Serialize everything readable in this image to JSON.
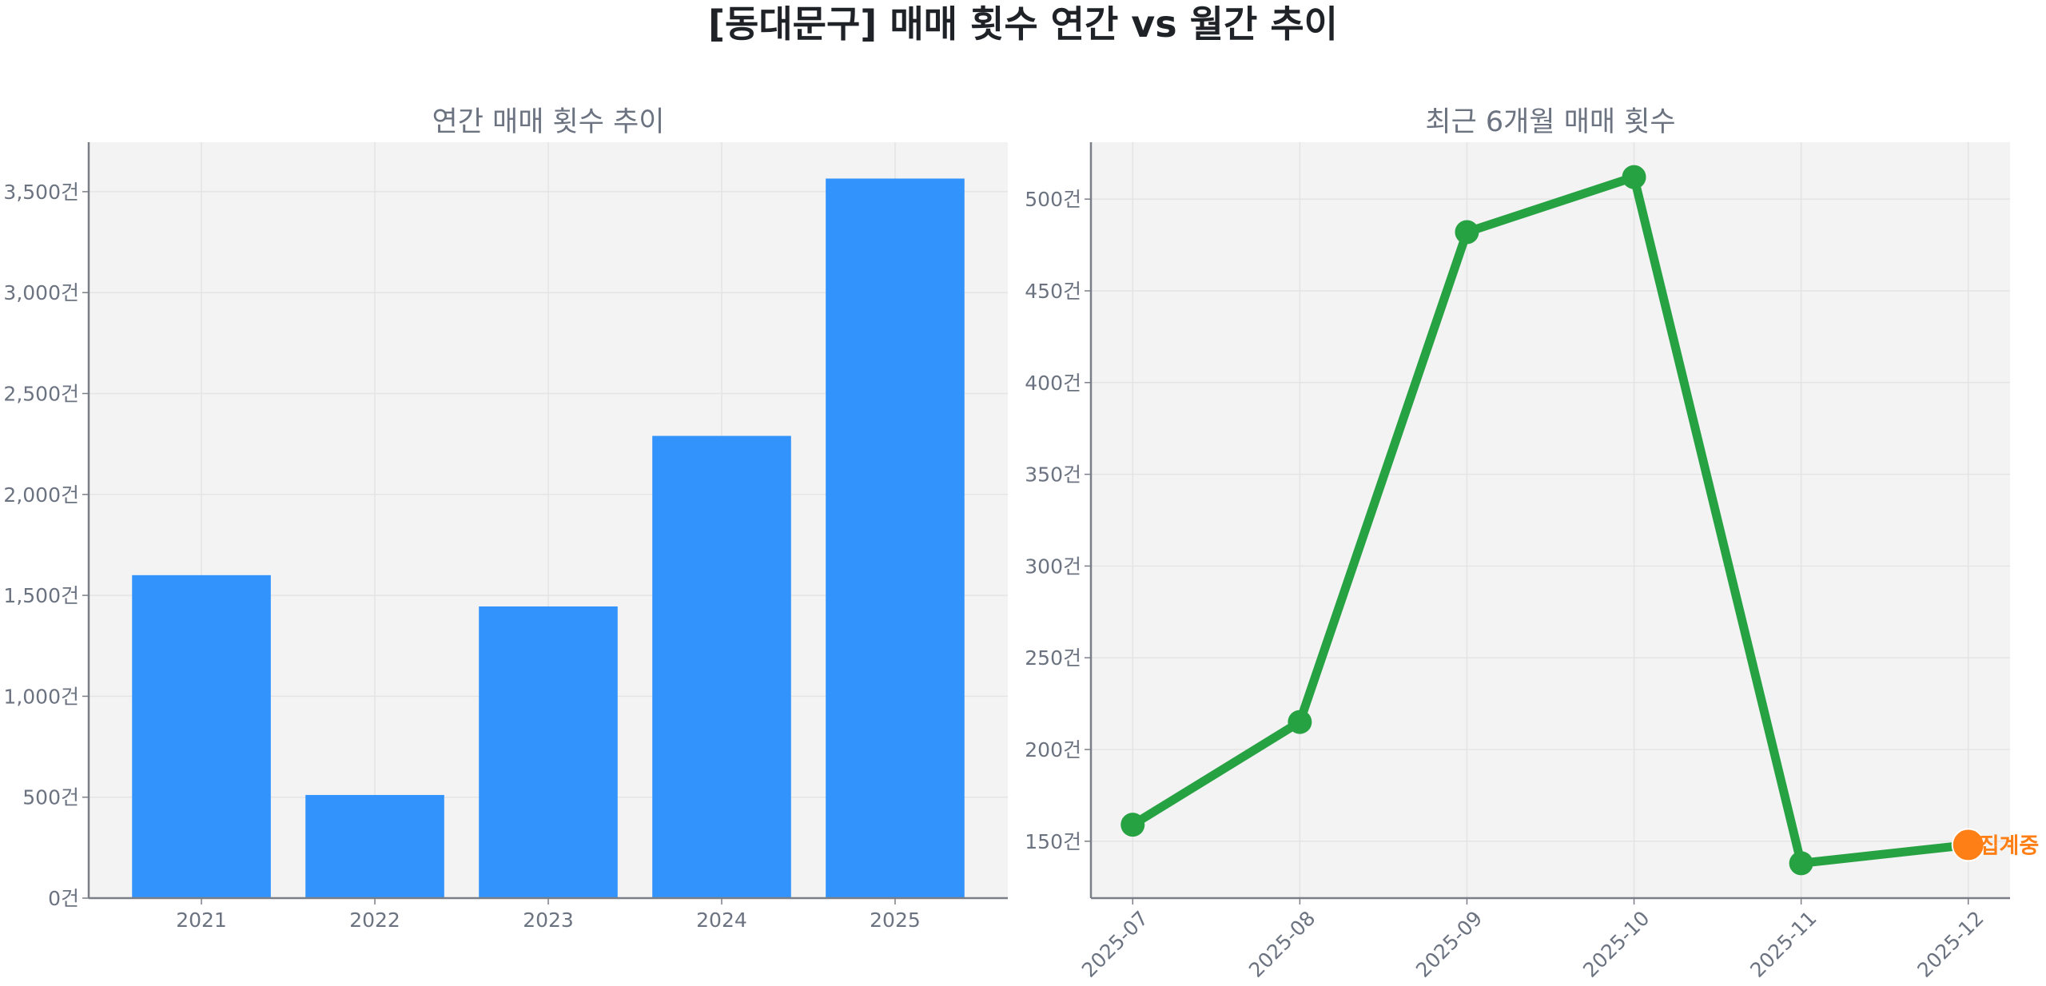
{
  "title": "[동대문구] 매매 횟수 연간 vs 월간 추이",
  "colors": {
    "bar": "#3193fb",
    "line": "#27a243",
    "highlight": "#fe7f16",
    "plot_bg": "#f3f3f3",
    "grid": "#e4e4e4",
    "axis": "#7a7f87"
  },
  "chart_data": [
    {
      "type": "bar",
      "title": "연간 매매 횟수 추이",
      "categories": [
        "2021",
        "2022",
        "2023",
        "2024",
        "2025"
      ],
      "values": [
        1600,
        511,
        1445,
        2290,
        3565
      ],
      "yticks": [
        0,
        500,
        1000,
        1500,
        2000,
        2500,
        3000,
        3500
      ],
      "ytick_labels": [
        "0건",
        "500건",
        "1,000건",
        "1,500건",
        "2,000건",
        "2,500건",
        "3,000건",
        "3,500건"
      ],
      "ylim": [
        0,
        3745
      ],
      "xlabel": "",
      "ylabel": "",
      "grid": true
    },
    {
      "type": "line",
      "title": "최근 6개월 매매 횟수",
      "categories": [
        "2025-07",
        "2025-08",
        "2025-09",
        "2025-10",
        "2025-11",
        "2025-12"
      ],
      "values": [
        159,
        215,
        482,
        512,
        138,
        148
      ],
      "yticks": [
        150,
        200,
        250,
        300,
        350,
        400,
        450,
        500
      ],
      "ytick_labels": [
        "150건",
        "200건",
        "250건",
        "300건",
        "350건",
        "400건",
        "450건",
        "500건"
      ],
      "ylim": [
        119,
        531
      ],
      "highlight_index": 5,
      "annotation": "집계중",
      "xlabel": "",
      "ylabel": "",
      "grid": true
    }
  ]
}
